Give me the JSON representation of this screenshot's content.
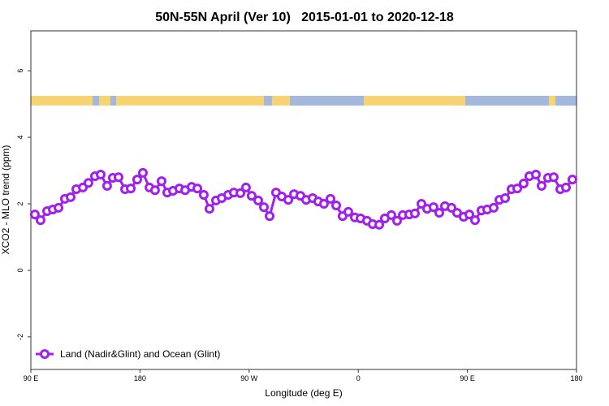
{
  "chart_data": {
    "type": "line",
    "title": "50N-55N April (Ver 10)   2015-01-01 to 2020-12-18",
    "x_label": "Longitude (deg E)",
    "y_label": "XCO2 - MLO trend (ppm)",
    "xlim": [
      90,
      540
    ],
    "ylim": [
      -2.98,
      7.2
    ],
    "xticks": [
      {
        "value": 90,
        "label": "90 E"
      },
      180,
      {
        "value": 270,
        "label": "90 W"
      },
      {
        "value": 360,
        "label": "0"
      },
      {
        "value": 450,
        "label": "90 E"
      },
      {
        "value": 540,
        "label": "180"
      }
    ],
    "yticks": [
      -2,
      0,
      2,
      4,
      6
    ],
    "legend": "bottom-left",
    "x": [
      93.3,
      98.0,
      103.4,
      108.1,
      112.8,
      118.1,
      122.8,
      127.5,
      132.9,
      137.5,
      142.9,
      147.6,
      152.9,
      157.6,
      162.3,
      167.7,
      172.4,
      177.7,
      182.4,
      187.8,
      192.4,
      197.8,
      202.5,
      207.2,
      212.5,
      217.2,
      222.6,
      227.3,
      232.6,
      237.3,
      242.7,
      247.4,
      252.7,
      257.4,
      262.8,
      267.4,
      272.1,
      277.5,
      282.2,
      286.9,
      292.2,
      296.9,
      302.3,
      307.0,
      312.3,
      317.0,
      322.4,
      327.0,
      331.7,
      337.1,
      341.8,
      347.1,
      351.8,
      357.2,
      361.9,
      367.2,
      371.9,
      377.3,
      381.9,
      387.3,
      392.0,
      396.7,
      402.0,
      406.7,
      412.1,
      416.8,
      422.1,
      426.8,
      431.5,
      436.9,
      441.5,
      446.9,
      451.6,
      456.3,
      461.6,
      466.3,
      471.7,
      476.4,
      481.1,
      486.4,
      491.1,
      496.4,
      501.1,
      506.5,
      511.2,
      516.5,
      521.2,
      526.6,
      531.3,
      536.6
    ],
    "series": [
      {
        "name": "Land (Nadir&Glint) and Ocean (Glint)",
        "color": "#a020f0",
        "values": [
          1.68,
          1.51,
          1.78,
          1.83,
          1.88,
          2.15,
          2.2,
          2.44,
          2.49,
          2.63,
          2.83,
          2.88,
          2.54,
          2.78,
          2.8,
          2.44,
          2.46,
          2.73,
          2.93,
          2.49,
          2.41,
          2.68,
          2.34,
          2.39,
          2.46,
          2.41,
          2.51,
          2.46,
          2.27,
          1.85,
          2.1,
          2.17,
          2.27,
          2.34,
          2.32,
          2.49,
          2.24,
          2.1,
          1.9,
          1.63,
          2.34,
          2.22,
          2.12,
          2.29,
          2.24,
          2.12,
          2.17,
          2.07,
          2.0,
          2.15,
          1.95,
          1.63,
          1.76,
          1.59,
          1.56,
          1.49,
          1.39,
          1.37,
          1.56,
          1.66,
          1.49,
          1.66,
          1.68,
          1.71,
          2.0,
          1.85,
          1.9,
          1.73,
          1.93,
          1.88,
          1.73,
          1.61,
          1.68,
          1.51,
          1.8,
          1.83,
          1.88,
          2.12,
          2.17,
          2.44,
          2.46,
          2.61,
          2.83,
          2.88,
          2.54,
          2.78,
          2.8,
          2.44,
          2.49,
          2.73
        ]
      }
    ]
  }
}
